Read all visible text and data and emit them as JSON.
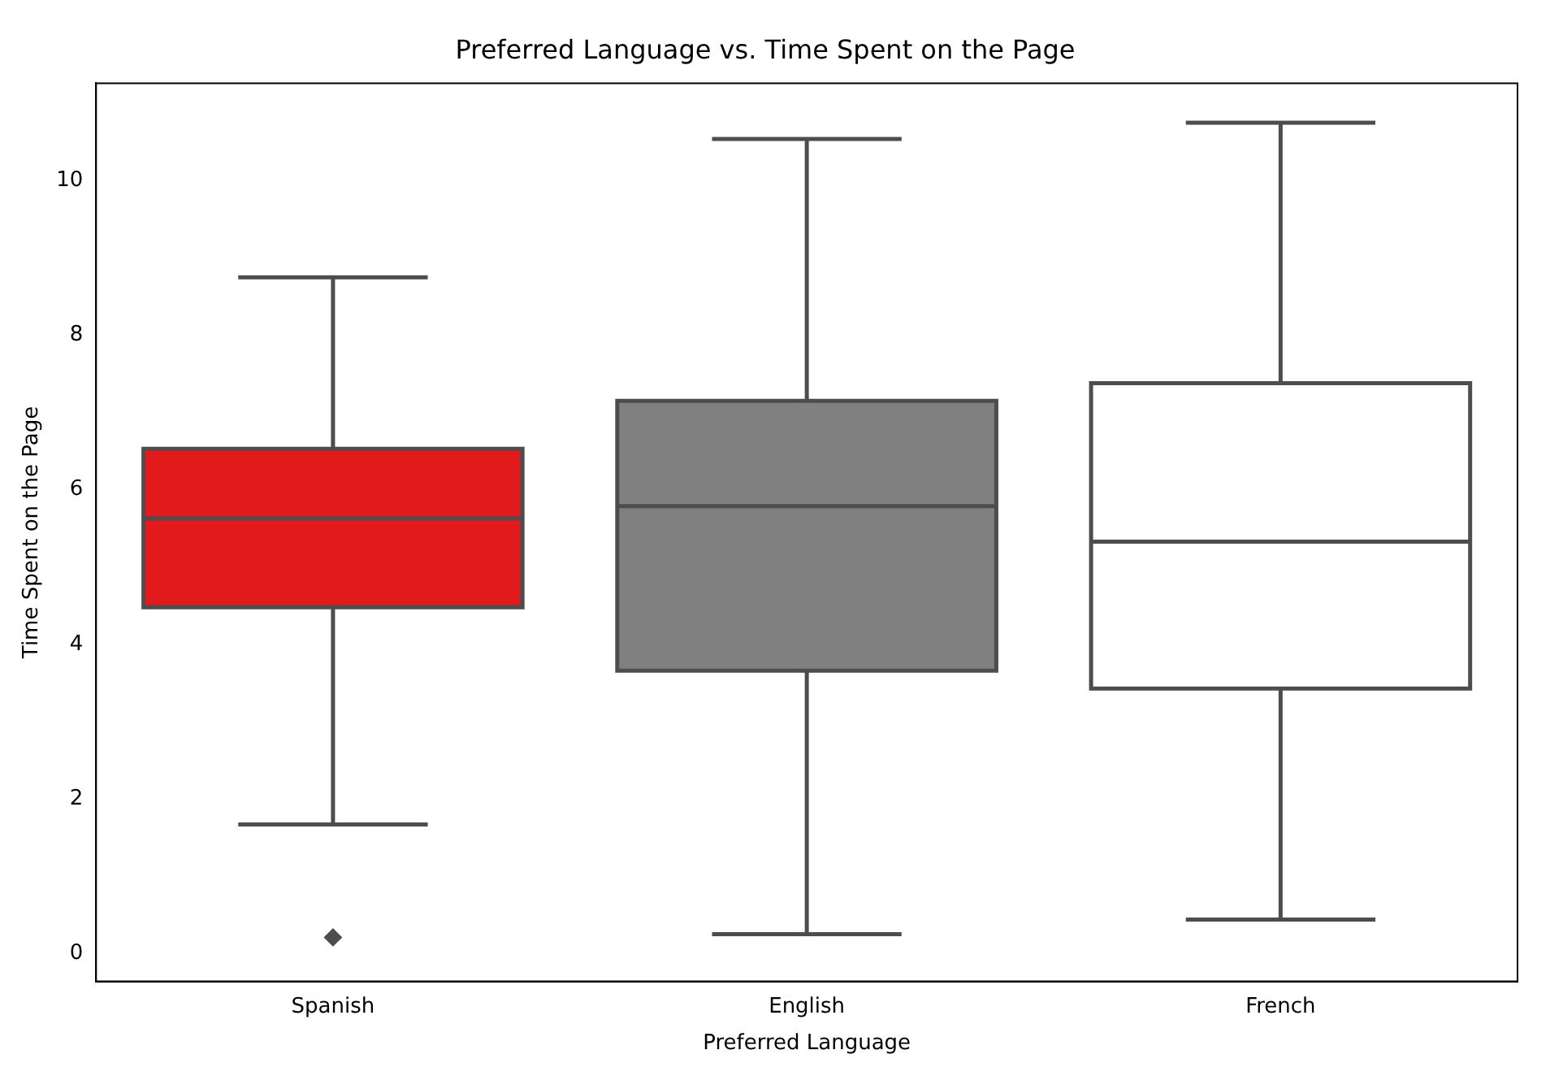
{
  "chart_data": {
    "type": "box",
    "title": "Preferred Language vs. Time Spent on the Page",
    "xlabel": "Preferred Language",
    "ylabel": "Time Spent on the Page",
    "categories": [
      "Spanish",
      "English",
      "French"
    ],
    "colors": [
      "#e31a1c",
      "#808080",
      "#ffffff"
    ],
    "boxes": [
      {
        "low": 1.67,
        "q1": 4.48,
        "median": 5.63,
        "q3": 6.53,
        "high": 8.75,
        "outliers": [
          0.21
        ]
      },
      {
        "low": 0.25,
        "q1": 3.66,
        "median": 5.79,
        "q3": 7.15,
        "high": 10.54
      },
      {
        "low": 0.44,
        "q1": 3.43,
        "median": 5.33,
        "q3": 7.38,
        "high": 10.75
      }
    ],
    "ylim": [
      -0.36,
      11.26
    ],
    "yticks": [
      0,
      2,
      4,
      6,
      8,
      10
    ],
    "grid": false,
    "legend": false
  }
}
